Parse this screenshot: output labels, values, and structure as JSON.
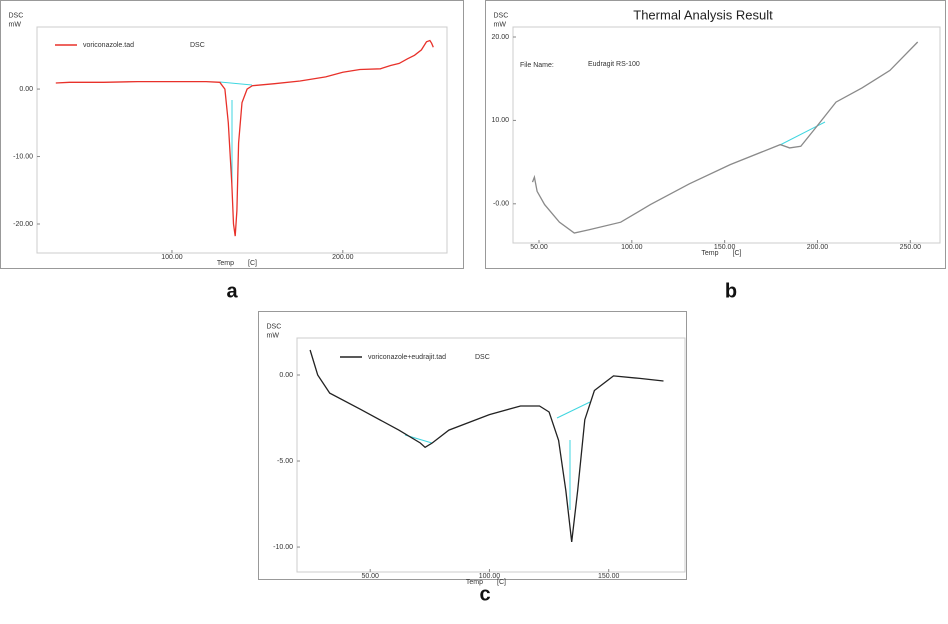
{
  "chart_data": [
    {
      "type": "line",
      "panel_label": "a",
      "y_label": "DSC",
      "y_unit": "mW",
      "x_label": "Temp",
      "x_unit": "[C]",
      "legend_note": "DSC",
      "xlim": [
        21,
        261
      ],
      "ylim": [
        -24.3,
        9.2
      ],
      "xticks": [
        {
          "value": 100,
          "label": "100.00"
        },
        {
          "value": 200,
          "label": "200.00"
        }
      ],
      "yticks": [
        {
          "value": 0,
          "label": "0.00"
        },
        {
          "value": -10,
          "label": "-10.00"
        },
        {
          "value": -20,
          "label": "-20.00"
        }
      ],
      "x": [
        32,
        40,
        60,
        80,
        100,
        120,
        128,
        131,
        133,
        135,
        136,
        137,
        138,
        139,
        141,
        144,
        147,
        160,
        175,
        190,
        200,
        210,
        222,
        228,
        233,
        238,
        242,
        246,
        249,
        251,
        252,
        253
      ],
      "series": [
        {
          "name": "voriconazole.tad",
          "color": "#e8312a",
          "values": [
            0.9,
            1.0,
            1.0,
            1.1,
            1.1,
            1.1,
            1.0,
            0.0,
            -5,
            -14,
            -20,
            -21.8,
            -18,
            -8,
            -2,
            0,
            0.5,
            0.8,
            1.2,
            1.8,
            2.5,
            2.9,
            3.0,
            3.5,
            3.8,
            4.5,
            5.0,
            5.8,
            7.0,
            7.2,
            6.8,
            6.2
          ]
        }
      ]
    },
    {
      "type": "line",
      "panel_label": "b",
      "title": "Thermal Analysis Result",
      "y_label": "DSC",
      "y_unit": "mW",
      "x_label": "Temp",
      "x_unit": "[C]",
      "annotations": [
        "File Name:",
        "Eudragit RS-100"
      ],
      "xlim": [
        36,
        266
      ],
      "ylim": [
        -4.7,
        21.2
      ],
      "xticks": [
        {
          "value": 50,
          "label": "50.00"
        },
        {
          "value": 100,
          "label": "100.00"
        },
        {
          "value": 150,
          "label": "150.00"
        },
        {
          "value": 200,
          "label": "200.00"
        },
        {
          "value": 250,
          "label": "250.00"
        }
      ],
      "yticks": [
        {
          "value": 20,
          "label": "20.00"
        },
        {
          "value": 10,
          "label": "10.00"
        },
        {
          "value": 0,
          "label": "-0.00"
        }
      ],
      "x": [
        46.5,
        47.5,
        49,
        53,
        61,
        69,
        77,
        94,
        110,
        131,
        153,
        180,
        185,
        191,
        199,
        210,
        224,
        239,
        254
      ],
      "series": [
        {
          "color": "#8a8a8a",
          "values": [
            2.6,
            3.2,
            1.5,
            -0.1,
            -2.2,
            -3.5,
            -3.1,
            -2.2,
            -0.1,
            2.4,
            4.7,
            7.1,
            6.7,
            6.9,
            9.1,
            12.2,
            13.9,
            16.0,
            19.4
          ]
        }
      ]
    },
    {
      "type": "line",
      "panel_label": "c",
      "y_label": "DSC",
      "y_unit": "mW",
      "x_label": "Temp",
      "x_unit": "[C]",
      "legend_note": "DSC",
      "xlim": [
        19.3,
        182
      ],
      "ylim": [
        -11.45,
        2.15
      ],
      "xticks": [
        {
          "value": 50,
          "label": "50.00"
        },
        {
          "value": 100,
          "label": "100.00"
        },
        {
          "value": 150,
          "label": "150.00"
        }
      ],
      "yticks": [
        {
          "value": 0,
          "label": "0.00"
        },
        {
          "value": -5,
          "label": "-5.00"
        },
        {
          "value": -10,
          "label": "-10.00"
        }
      ],
      "x": [
        24.8,
        28,
        33,
        46,
        62,
        71,
        73,
        76,
        83,
        100,
        113,
        121,
        125,
        129,
        132,
        134.5,
        137,
        140,
        144,
        152,
        163,
        173
      ],
      "series": [
        {
          "name": "voriconazole+eudrajit.tad",
          "color": "#222222",
          "values": [
            1.45,
            0,
            -1.05,
            -2.0,
            -3.2,
            -3.95,
            -4.2,
            -3.95,
            -3.2,
            -2.3,
            -1.8,
            -1.8,
            -2.15,
            -3.8,
            -6.7,
            -9.7,
            -6.7,
            -2.6,
            -0.9,
            -0.05,
            -0.2,
            -0.35
          ]
        }
      ]
    }
  ]
}
